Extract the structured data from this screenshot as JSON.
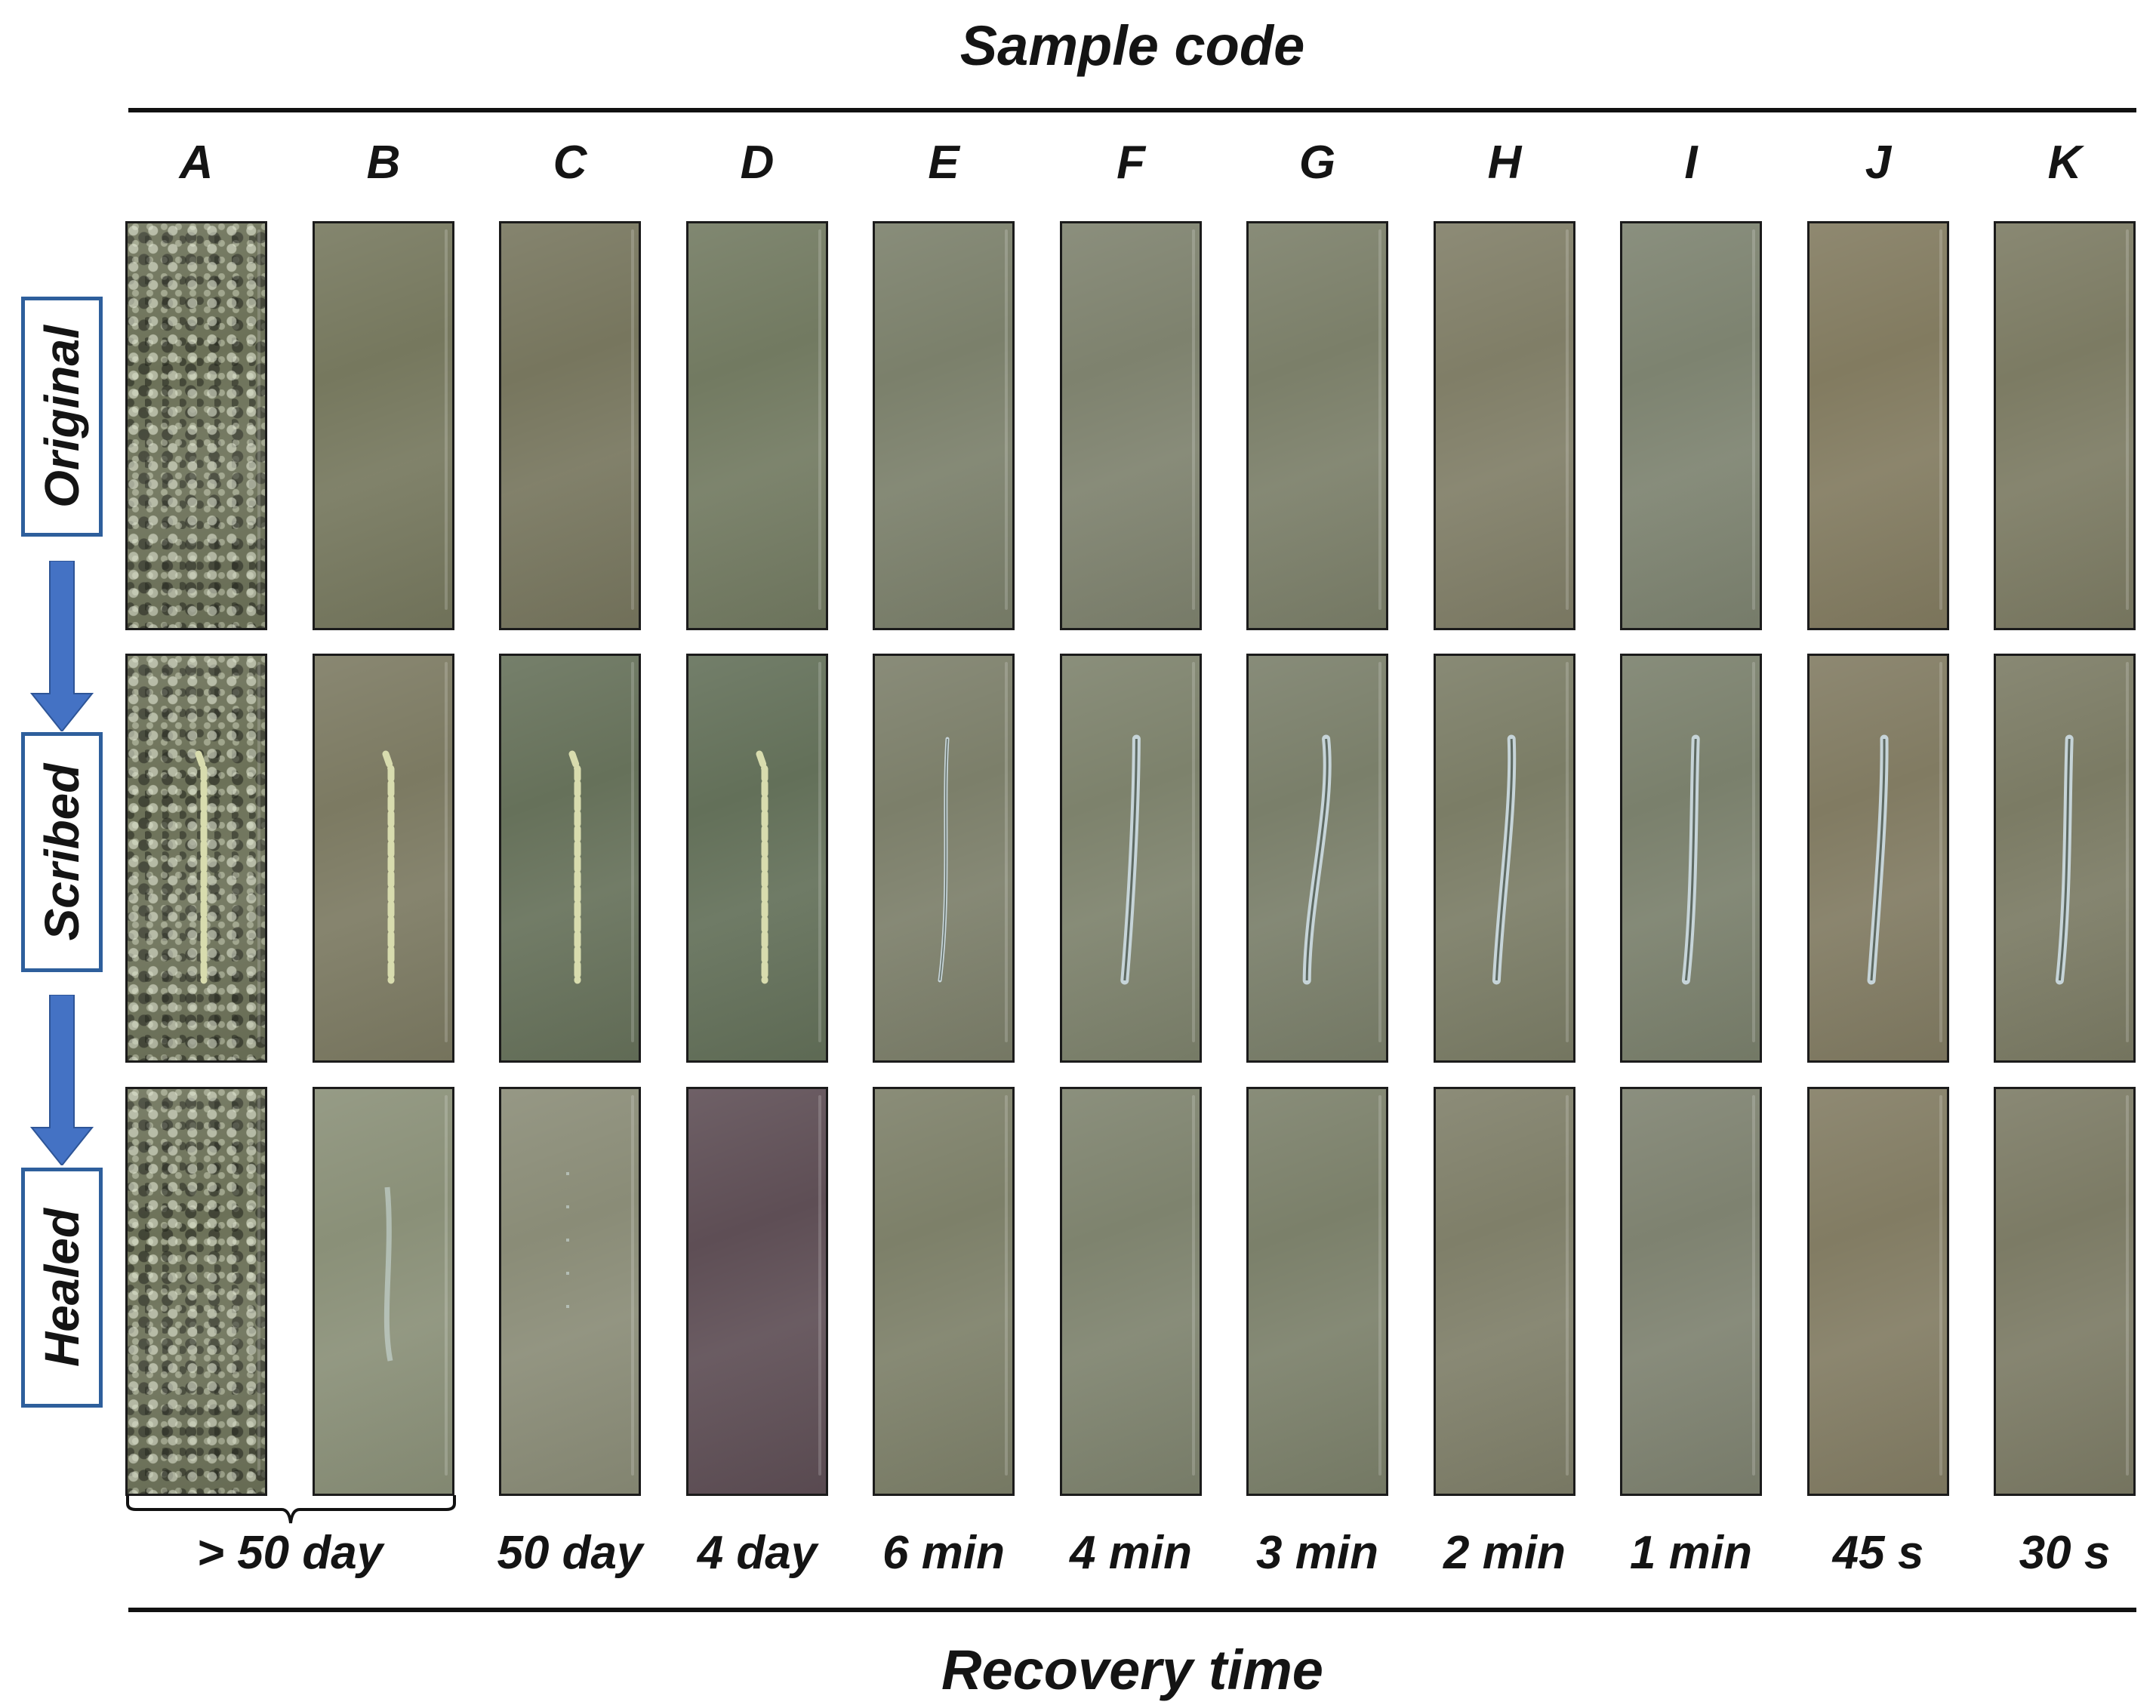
{
  "top_title": "Sample code",
  "bottom_title": "Recovery time",
  "row_labels": [
    "Original",
    "Scribed",
    "Healed"
  ],
  "samples": [
    {
      "code": "A",
      "colors": [
        "#737762",
        "#6c705c",
        "#6e725c"
      ],
      "scratch": "crack-yellow"
    },
    {
      "code": "B",
      "colors": [
        "#76785e",
        "#7c7a62",
        "#8a9078"
      ],
      "scratch": "crack-yellow"
    },
    {
      "code": "C",
      "colors": [
        "#77765e",
        "#66715a",
        "#8a8c77"
      ],
      "scratch": "crack-yellow"
    },
    {
      "code": "D",
      "colors": [
        "#727a61",
        "#637059",
        "#5e4e55"
      ],
      "scratch": "crack-yellow"
    },
    {
      "code": "E",
      "colors": [
        "#7b806b",
        "#7c7f6a",
        "#7d8069"
      ],
      "scratch": "line-thin"
    },
    {
      "code": "F",
      "colors": [
        "#7e826e",
        "#7d826c",
        "#7e836e"
      ],
      "scratch": "line-wide"
    },
    {
      "code": "G",
      "colors": [
        "#7b7f69",
        "#7a7f6a",
        "#7b806a"
      ],
      "scratch": "line-wide"
    },
    {
      "code": "H",
      "colors": [
        "#807e67",
        "#7b7d66",
        "#7f7f69"
      ],
      "scratch": "line-wide"
    },
    {
      "code": "I",
      "colors": [
        "#7d8370",
        "#7a806c",
        "#7e8270"
      ],
      "scratch": "line-wide"
    },
    {
      "code": "J",
      "colors": [
        "#827b60",
        "#817b62",
        "#827c63"
      ],
      "scratch": "line-wide"
    },
    {
      "code": "K",
      "colors": [
        "#7c7b63",
        "#7b7b64",
        "#7c7b65"
      ],
      "scratch": "line-wide"
    }
  ],
  "recovery_times": [
    {
      "label": "> 50 day",
      "span": [
        "A",
        "B"
      ]
    },
    {
      "label": "50 day",
      "span": [
        "C"
      ]
    },
    {
      "label": "4 day",
      "span": [
        "D"
      ]
    },
    {
      "label": "6 min",
      "span": [
        "E"
      ]
    },
    {
      "label": "4 min",
      "span": [
        "F"
      ]
    },
    {
      "label": "3 min",
      "span": [
        "G"
      ]
    },
    {
      "label": "2 min",
      "span": [
        "H"
      ]
    },
    {
      "label": "1 min",
      "span": [
        "I"
      ]
    },
    {
      "label": "45 s",
      "span": [
        "J"
      ]
    },
    {
      "label": "30 s",
      "span": [
        "K"
      ]
    }
  ],
  "colors": {
    "label_box_border": "#2e5f9c",
    "arrow": "#4472c4",
    "crack": "#d8dcae",
    "scratch_line": "#c6d4d8"
  }
}
